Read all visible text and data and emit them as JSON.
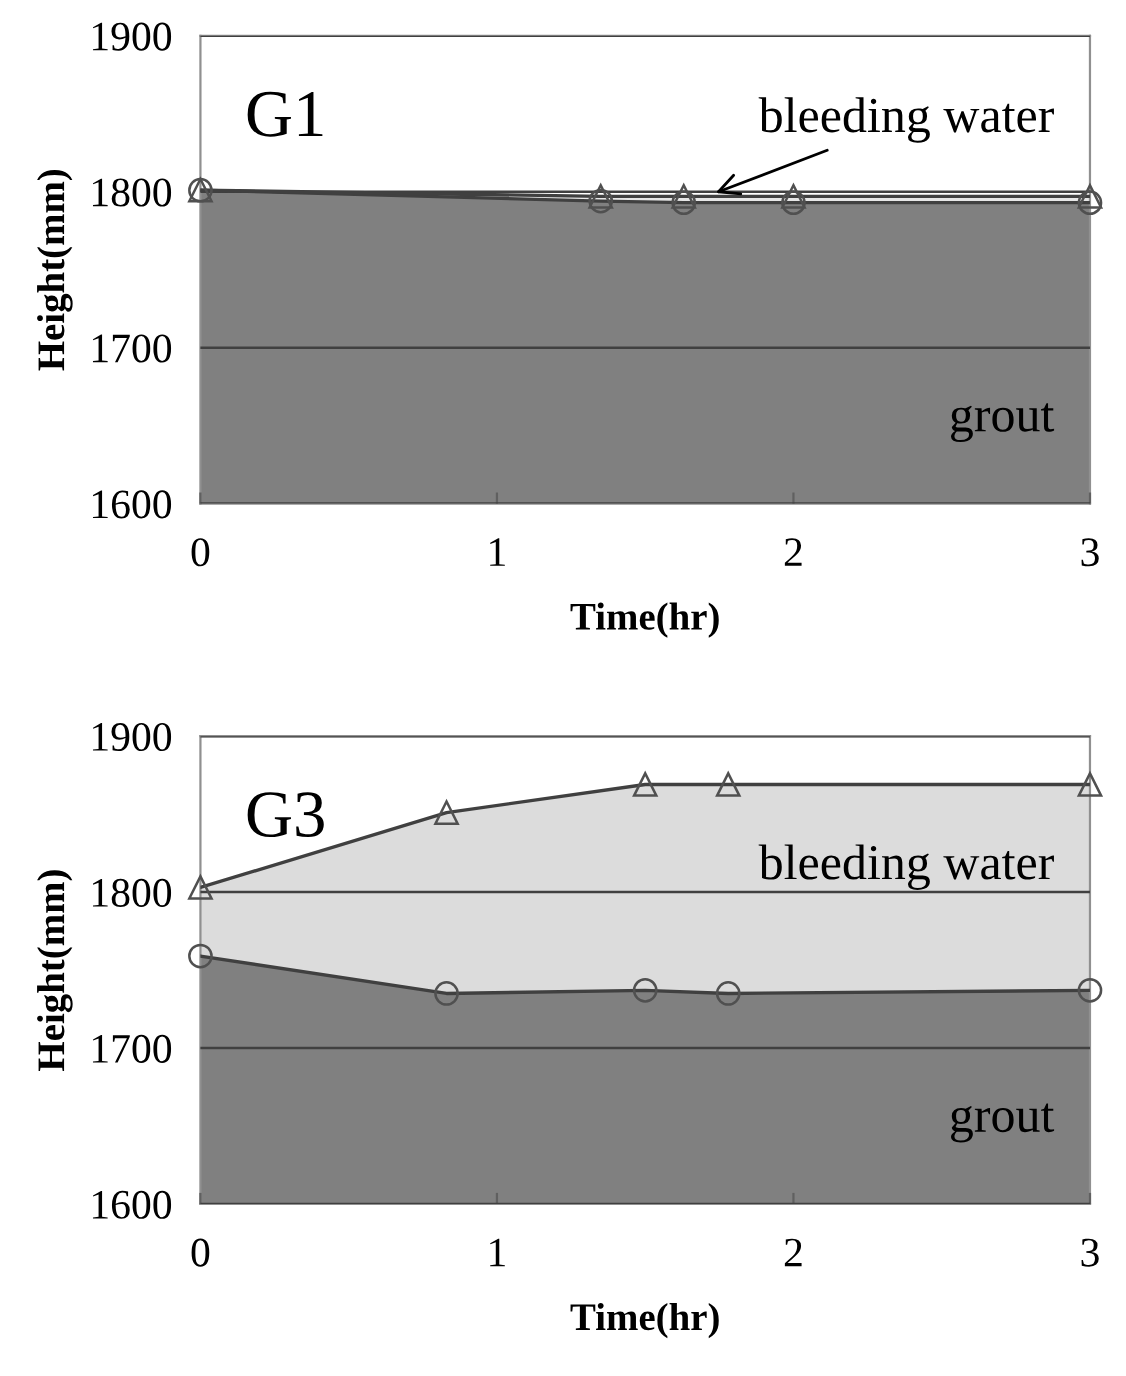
{
  "chart_data": [
    {
      "type": "area",
      "xlabel": "Time(hr)",
      "ylabel": "Height(mm)",
      "xlim": [
        0,
        3
      ],
      "ylim": [
        1600,
        1900
      ],
      "xticks": [
        0,
        1,
        2,
        3
      ],
      "yticks": [
        1600,
        1700,
        1800,
        1900
      ],
      "grid": "y",
      "annotations": [
        "G1",
        {
          "text": "bleeding water",
          "x": 1.72,
          "y": 1798
        },
        "grout"
      ],
      "series": [
        {
          "color": "#808080",
          "marker": "circle",
          "x": [
            0,
            1.35,
            1.63,
            2.0,
            3.0
          ],
          "values": [
            1801,
            1794,
            1793,
            1793,
            1793
          ]
        },
        {
          "color": "#e6e6e6",
          "marker": "triangle",
          "x": [
            0,
            1.35,
            1.63,
            2.0,
            3.0
          ],
          "values": [
            1801,
            1797,
            1797,
            1797,
            1797
          ]
        }
      ]
    },
    {
      "type": "area",
      "xlabel": "Time(hr)",
      "ylabel": "Height(mm)",
      "xlim": [
        0,
        3
      ],
      "ylim": [
        1600,
        1900
      ],
      "xticks": [
        0,
        1,
        2,
        3
      ],
      "yticks": [
        1600,
        1700,
        1800,
        1900
      ],
      "grid": "y",
      "annotations": [
        "G3",
        "bleeding water",
        "grout"
      ],
      "series": [
        {
          "color": "#808080",
          "marker": "circle",
          "x": [
            0,
            0.83,
            1.5,
            1.78,
            3.0
          ],
          "values": [
            1759,
            1735,
            1737,
            1735,
            1737
          ]
        },
        {
          "color": "#dcdcdc",
          "marker": "triangle",
          "x": [
            0,
            0.83,
            1.5,
            1.78,
            3.0
          ],
          "values": [
            1803,
            1851,
            1869,
            1869,
            1869
          ]
        }
      ]
    }
  ]
}
